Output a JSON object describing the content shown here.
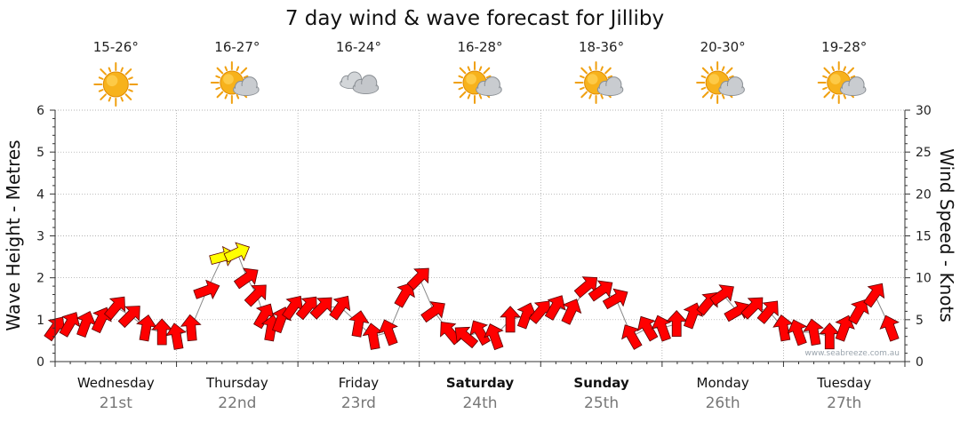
{
  "chart_data": {
    "type": "line",
    "title": "7 day wind & wave forecast for Jilliby",
    "ylabel_left": "Wave Height - Metres",
    "ylabel_right": "Wind Speed - Knots",
    "ylim_left": [
      0,
      6
    ],
    "ylim_right": [
      0,
      30
    ],
    "yticks_left": [
      "0",
      "1",
      "2",
      "3",
      "4",
      "5",
      "6"
    ],
    "yticks_right": [
      "0",
      "5",
      "10",
      "15",
      "20",
      "25",
      "30"
    ],
    "grid": true,
    "credit": "www.seabreeze.com.au",
    "colors": {
      "arrow": "#ff0000",
      "arrow_strong": "#ffff00",
      "outline": "#5a0000",
      "grid": "#999999",
      "axis": "#333333"
    },
    "days": [
      {
        "name": "Wednesday",
        "date": "21st",
        "temp": "15-26°",
        "icon": "sun-icon",
        "bold": false
      },
      {
        "name": "Thursday",
        "date": "22nd",
        "temp": "16-27°",
        "icon": "sun-cloud-icon",
        "bold": false
      },
      {
        "name": "Friday",
        "date": "23rd",
        "temp": "16-24°",
        "icon": "cloud-icon",
        "bold": false
      },
      {
        "name": "Saturday",
        "date": "24th",
        "temp": "16-28°",
        "icon": "sun-cloud-icon",
        "bold": true
      },
      {
        "name": "Sunday",
        "date": "25th",
        "temp": "18-36°",
        "icon": "sun-cloud-icon",
        "bold": true
      },
      {
        "name": "Monday",
        "date": "26th",
        "temp": "20-30°",
        "icon": "sun-cloud-icon",
        "bold": false
      },
      {
        "name": "Tuesday",
        "date": "27th",
        "temp": "19-28°",
        "icon": "sun-cloud-icon",
        "bold": false
      }
    ],
    "wind_series": {
      "name": "",
      "x_days": [
        0.0,
        0.12,
        0.25,
        0.38,
        0.5,
        0.62,
        0.75,
        0.88,
        1.0,
        1.12,
        1.25,
        1.38,
        1.5,
        1.58,
        1.66,
        1.72,
        1.78,
        1.86,
        1.96,
        2.08,
        2.2,
        2.35,
        2.5,
        2.62,
        2.75,
        2.88,
        3.0,
        3.12,
        3.25,
        3.38,
        3.5,
        3.62,
        3.75,
        3.88,
        4.0,
        4.12,
        4.25,
        4.38,
        4.5,
        4.62,
        4.75,
        4.88,
        5.0,
        5.12,
        5.25,
        5.38,
        5.5,
        5.62,
        5.75,
        5.88,
        6.0,
        6.12,
        6.25,
        6.38,
        6.5,
        6.62,
        6.75,
        6.88
      ],
      "knots": [
        4,
        4.5,
        4.5,
        5,
        6.5,
        5.5,
        4,
        3.5,
        3,
        4,
        8.5,
        12.5,
        13,
        10,
        8,
        5.5,
        4,
        5,
        6.5,
        6.5,
        6.5,
        6.5,
        4.5,
        3,
        3.5,
        8,
        10,
        6,
        3.5,
        3,
        3.5,
        3,
        5,
        5.5,
        6,
        6.5,
        6,
        9,
        8.5,
        7.5,
        3,
        4,
        4,
        4.5,
        5.5,
        7,
        8,
        6,
        6.5,
        6,
        4,
        3.5,
        3.5,
        3,
        4,
        6,
        8,
        4
      ],
      "direction_deg": [
        55,
        60,
        70,
        65,
        50,
        45,
        80,
        90,
        100,
        95,
        20,
        15,
        25,
        35,
        45,
        60,
        80,
        70,
        55,
        50,
        45,
        55,
        80,
        100,
        110,
        60,
        45,
        35,
        130,
        140,
        120,
        110,
        90,
        70,
        50,
        60,
        65,
        40,
        35,
        30,
        120,
        120,
        110,
        90,
        70,
        50,
        35,
        30,
        45,
        50,
        100,
        110,
        100,
        90,
        70,
        60,
        55,
        110
      ]
    }
  }
}
